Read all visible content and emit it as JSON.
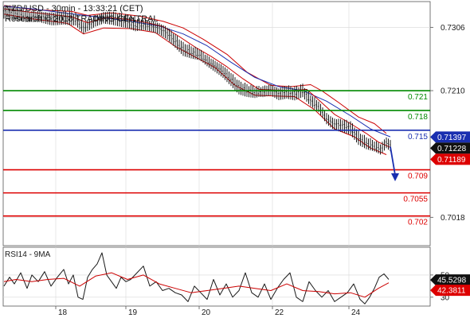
{
  "header": {
    "line1": "NZD/USD - 30min - 13:33:21 (CET)",
    "line2": "Research © 2018 TRADING CENTRAL"
  },
  "colors": {
    "price": "#1a1a1a",
    "ma_fast": "#cc0000",
    "ma_slow": "#1a2fb0",
    "green": "#008800",
    "blue": "#1a2fb0",
    "red": "#dd0000",
    "arrow": "#1a2fb0",
    "tag_black": "#111111",
    "tag_blue": "#1a2fb0",
    "tag_red": "#dd0000",
    "grid": "#d8d8d8",
    "divider": "#555555"
  },
  "chart_data": [
    {
      "type": "line",
      "panel": "price",
      "ylim": [
        0.6975,
        0.7345
      ],
      "y_ticks": [
        {
          "value": 0.7306,
          "label": "0.7306"
        },
        {
          "value": 0.721,
          "label": "0.7210"
        },
        {
          "value": 0.7018,
          "label": "0.7018"
        }
      ],
      "x_days": [
        {
          "pos": 70,
          "label": "18"
        },
        {
          "pos": 158,
          "label": "19"
        },
        {
          "pos": 250,
          "label": "20"
        },
        {
          "pos": 342,
          "label": "22"
        },
        {
          "pos": 438,
          "label": "24"
        }
      ],
      "levels": [
        {
          "value": 0.721,
          "label": "0.721",
          "color": "#008800"
        },
        {
          "value": 0.718,
          "label": "0.718",
          "color": "#008800"
        },
        {
          "value": 0.715,
          "label": "0.715",
          "color": "#1a2fb0"
        },
        {
          "value": 0.709,
          "label": "0.709",
          "color": "#dd0000"
        },
        {
          "value": 0.7055,
          "label": "0.7055",
          "color": "#dd0000"
        },
        {
          "value": 0.702,
          "label": "0.702",
          "color": "#dd0000"
        }
      ],
      "price_tags": [
        {
          "value": 0.71397,
          "label": "0.71397",
          "color": "#1a2fb0"
        },
        {
          "value": 0.71228,
          "label": "0.71228",
          "color": "#111111"
        },
        {
          "value": 0.71189,
          "label": "0.71189",
          "color": "#dd0000"
        }
      ],
      "arrow": {
        "from": [
          490,
          0.7125
        ],
        "to": [
          496,
          0.7075
        ]
      },
      "price_path": [
        [
          5,
          0.733
        ],
        [
          20,
          0.7326
        ],
        [
          35,
          0.7321
        ],
        [
          50,
          0.7323
        ],
        [
          65,
          0.732
        ],
        [
          80,
          0.7321
        ],
        [
          95,
          0.7318
        ],
        [
          105,
          0.7304
        ],
        [
          112,
          0.7309
        ],
        [
          120,
          0.7316
        ],
        [
          130,
          0.7322
        ],
        [
          140,
          0.7321
        ],
        [
          150,
          0.7318
        ],
        [
          160,
          0.7315
        ],
        [
          170,
          0.7309
        ],
        [
          180,
          0.7309
        ],
        [
          190,
          0.7308
        ],
        [
          200,
          0.7305
        ],
        [
          210,
          0.7298
        ],
        [
          220,
          0.7286
        ],
        [
          230,
          0.7273
        ],
        [
          240,
          0.7268
        ],
        [
          250,
          0.7264
        ],
        [
          260,
          0.7255
        ],
        [
          270,
          0.7248
        ],
        [
          280,
          0.724
        ],
        [
          290,
          0.7228
        ],
        [
          300,
          0.7215
        ],
        [
          310,
          0.721
        ],
        [
          320,
          0.7207
        ],
        [
          330,
          0.7208
        ],
        [
          340,
          0.7212
        ],
        [
          350,
          0.7206
        ],
        [
          360,
          0.7209
        ],
        [
          370,
          0.7206
        ],
        [
          380,
          0.721
        ],
        [
          390,
          0.7195
        ],
        [
          400,
          0.7185
        ],
        [
          410,
          0.7168
        ],
        [
          420,
          0.716
        ],
        [
          430,
          0.7158
        ],
        [
          440,
          0.7154
        ],
        [
          450,
          0.7138
        ],
        [
          460,
          0.713
        ],
        [
          470,
          0.7125
        ],
        [
          478,
          0.7121
        ],
        [
          485,
          0.7132
        ],
        [
          490,
          0.7128
        ]
      ],
      "ma_fast_path": [
        [
          5,
          0.7334
        ],
        [
          30,
          0.733
        ],
        [
          60,
          0.7326
        ],
        [
          90,
          0.7322
        ],
        [
          110,
          0.7313
        ],
        [
          135,
          0.7321
        ],
        [
          160,
          0.7318
        ],
        [
          185,
          0.7313
        ],
        [
          205,
          0.7307
        ],
        [
          225,
          0.7292
        ],
        [
          245,
          0.7276
        ],
        [
          265,
          0.7262
        ],
        [
          285,
          0.7246
        ],
        [
          305,
          0.7228
        ],
        [
          325,
          0.7212
        ],
        [
          345,
          0.7211
        ],
        [
          365,
          0.721
        ],
        [
          385,
          0.7212
        ],
        [
          400,
          0.7196
        ],
        [
          420,
          0.7174
        ],
        [
          440,
          0.716
        ],
        [
          460,
          0.7145
        ],
        [
          475,
          0.7132
        ],
        [
          490,
          0.7124
        ]
      ],
      "ma_slow_path": [
        [
          5,
          0.7338
        ],
        [
          40,
          0.7334
        ],
        [
          80,
          0.7328
        ],
        [
          120,
          0.7322
        ],
        [
          160,
          0.7316
        ],
        [
          200,
          0.7308
        ],
        [
          230,
          0.7296
        ],
        [
          260,
          0.7278
        ],
        [
          290,
          0.7253
        ],
        [
          320,
          0.723
        ],
        [
          350,
          0.7216
        ],
        [
          380,
          0.721
        ],
        [
          410,
          0.7194
        ],
        [
          440,
          0.7172
        ],
        [
          465,
          0.7152
        ],
        [
          490,
          0.714
        ]
      ],
      "band_upper_path": [
        [
          5,
          0.7339
        ],
        [
          40,
          0.7333
        ],
        [
          90,
          0.733
        ],
        [
          110,
          0.7324
        ],
        [
          140,
          0.7328
        ],
        [
          175,
          0.7323
        ],
        [
          205,
          0.7315
        ],
        [
          230,
          0.7305
        ],
        [
          255,
          0.7288
        ],
        [
          285,
          0.7265
        ],
        [
          310,
          0.7238
        ],
        [
          340,
          0.7218
        ],
        [
          365,
          0.7216
        ],
        [
          390,
          0.7219
        ],
        [
          405,
          0.7209
        ],
        [
          425,
          0.7192
        ],
        [
          450,
          0.717
        ],
        [
          470,
          0.716
        ],
        [
          485,
          0.7145
        ]
      ],
      "band_lower_path": [
        [
          5,
          0.7326
        ],
        [
          40,
          0.7319
        ],
        [
          85,
          0.7312
        ],
        [
          105,
          0.7296
        ],
        [
          130,
          0.7305
        ],
        [
          165,
          0.7304
        ],
        [
          195,
          0.7298
        ],
        [
          220,
          0.7277
        ],
        [
          245,
          0.7261
        ],
        [
          270,
          0.7245
        ],
        [
          295,
          0.7218
        ],
        [
          320,
          0.7203
        ],
        [
          345,
          0.7202
        ],
        [
          370,
          0.7201
        ],
        [
          395,
          0.7181
        ],
        [
          420,
          0.7152
        ],
        [
          445,
          0.714
        ],
        [
          465,
          0.7123
        ],
        [
          485,
          0.7113
        ]
      ]
    },
    {
      "type": "line",
      "panel": "indicator",
      "title": "RSI14 - 9MA",
      "ylim": [
        22,
        75
      ],
      "y_ticks": [
        {
          "value": 50,
          "label": "50"
        },
        {
          "value": 30,
          "label": "30"
        }
      ],
      "value_tags": [
        {
          "value": 45.5298,
          "label": "45.5298",
          "color": "#111111"
        },
        {
          "value": 42.3811,
          "label": "42.3811",
          "color": "#dd0000"
        }
      ],
      "rsi_path": [
        [
          5,
          40
        ],
        [
          12,
          48
        ],
        [
          18,
          42
        ],
        [
          26,
          52
        ],
        [
          34,
          38
        ],
        [
          40,
          50
        ],
        [
          48,
          44
        ],
        [
          56,
          53
        ],
        [
          64,
          40
        ],
        [
          72,
          48
        ],
        [
          80,
          55
        ],
        [
          86,
          42
        ],
        [
          92,
          50
        ],
        [
          98,
          30
        ],
        [
          104,
          28
        ],
        [
          110,
          48
        ],
        [
          116,
          55
        ],
        [
          122,
          60
        ],
        [
          128,
          70
        ],
        [
          134,
          50
        ],
        [
          140,
          44
        ],
        [
          146,
          38
        ],
        [
          152,
          48
        ],
        [
          158,
          44
        ],
        [
          164,
          46
        ],
        [
          172,
          52
        ],
        [
          180,
          58
        ],
        [
          188,
          40
        ],
        [
          196,
          44
        ],
        [
          204,
          36
        ],
        [
          212,
          38
        ],
        [
          220,
          34
        ],
        [
          228,
          32
        ],
        [
          236,
          26
        ],
        [
          244,
          40
        ],
        [
          252,
          34
        ],
        [
          260,
          28
        ],
        [
          268,
          46
        ],
        [
          276,
          32
        ],
        [
          284,
          42
        ],
        [
          292,
          30
        ],
        [
          300,
          36
        ],
        [
          308,
          52
        ],
        [
          316,
          34
        ],
        [
          324,
          30
        ],
        [
          332,
          42
        ],
        [
          340,
          28
        ],
        [
          348,
          38
        ],
        [
          356,
          46
        ],
        [
          364,
          52
        ],
        [
          372,
          30
        ],
        [
          380,
          26
        ],
        [
          388,
          44
        ],
        [
          396,
          36
        ],
        [
          404,
          30
        ],
        [
          412,
          36
        ],
        [
          420,
          26
        ],
        [
          428,
          30
        ],
        [
          436,
          34
        ],
        [
          444,
          42
        ],
        [
          452,
          28
        ],
        [
          458,
          24
        ],
        [
          464,
          30
        ],
        [
          470,
          38
        ],
        [
          476,
          48
        ],
        [
          482,
          51
        ],
        [
          488,
          46
        ]
      ],
      "ma_path": [
        [
          5,
          44
        ],
        [
          20,
          46
        ],
        [
          40,
          44
        ],
        [
          60,
          46
        ],
        [
          80,
          47
        ],
        [
          100,
          40
        ],
        [
          120,
          49
        ],
        [
          140,
          52
        ],
        [
          160,
          46
        ],
        [
          180,
          50
        ],
        [
          200,
          42
        ],
        [
          220,
          38
        ],
        [
          240,
          34
        ],
        [
          260,
          36
        ],
        [
          280,
          38
        ],
        [
          300,
          40
        ],
        [
          320,
          38
        ],
        [
          340,
          36
        ],
        [
          360,
          42
        ],
        [
          380,
          36
        ],
        [
          400,
          35
        ],
        [
          420,
          33
        ],
        [
          440,
          34
        ],
        [
          458,
          30
        ],
        [
          475,
          38
        ],
        [
          488,
          43
        ]
      ]
    }
  ]
}
